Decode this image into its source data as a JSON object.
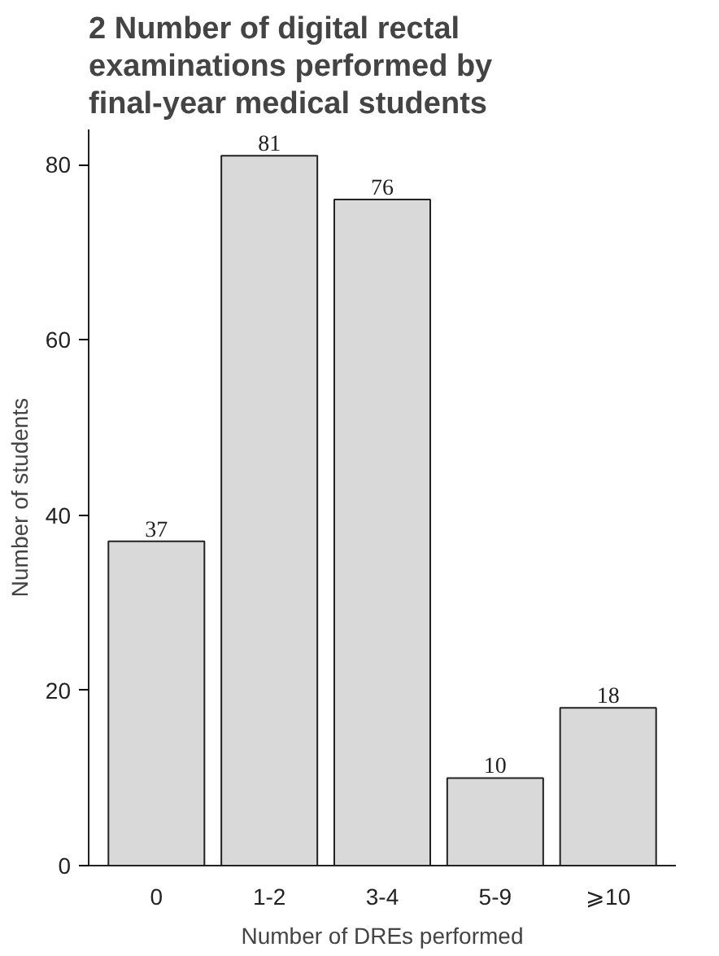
{
  "chart_data": {
    "type": "bar",
    "title": "2 Number of digital rectal examinations performed by final-year medical students",
    "xlabel": "Number of DREs performed",
    "ylabel": "Number of students",
    "categories": [
      "0",
      "1-2",
      "3-4",
      "5-9",
      "⩾10"
    ],
    "values": [
      37,
      81,
      76,
      10,
      18
    ],
    "color": "#d9d9d9",
    "ylim": [
      0,
      84
    ],
    "yticks": [
      0,
      20,
      40,
      60,
      80
    ],
    "grid": false,
    "data_labels": true
  }
}
